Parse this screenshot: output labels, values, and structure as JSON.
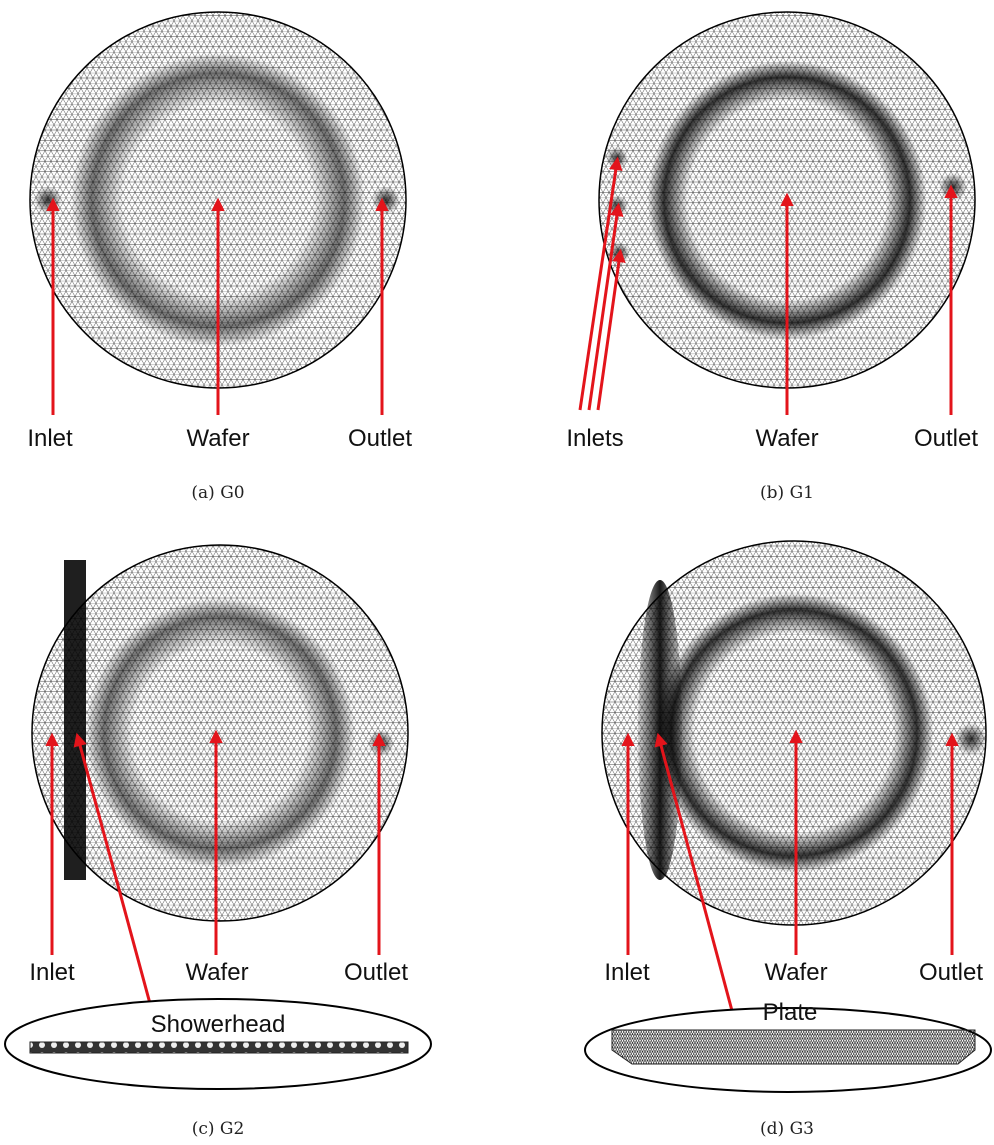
{
  "panels": {
    "g0": {
      "caption": "(a) G0",
      "labels": {
        "inlet": "Inlet",
        "wafer": "Wafer",
        "outlet": "Outlet"
      }
    },
    "g1": {
      "caption": "(b) G1",
      "labels": {
        "inlets": "Inlets",
        "wafer": "Wafer",
        "outlet": "Outlet"
      }
    },
    "g2": {
      "caption": "(c) G2",
      "labels": {
        "inlet": "Inlet",
        "wafer": "Wafer",
        "outlet": "Outlet",
        "detail": "Showerhead"
      }
    },
    "g3": {
      "caption": "(d) G3",
      "labels": {
        "inlet": "Inlet",
        "wafer": "Wafer",
        "outlet": "Outlet",
        "detail": "Plate"
      }
    }
  },
  "colors": {
    "arrow": "#e3141b",
    "mesh": "#000000"
  }
}
